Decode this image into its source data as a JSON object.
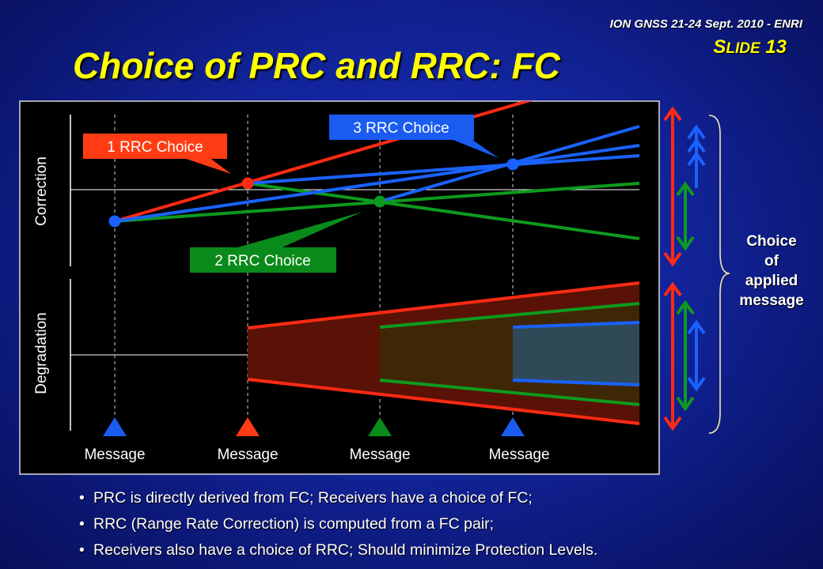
{
  "header": {
    "conference": "ION GNSS 21-24 Sept. 2010 - ENRI",
    "slide_number": "Slide 13",
    "title": "Choice of PRC and RRC: FC"
  },
  "diagram": {
    "axis_labels": {
      "correction": "Correction",
      "degradation": "Degradation"
    },
    "callouts": {
      "rrc1": "1 RRC Choice",
      "rrc2": "2 RRC Choice",
      "rrc3": "3 RRC Choice"
    },
    "messages": [
      "Message",
      "Message",
      "Message",
      "Message"
    ],
    "message_colors": [
      "#1a5cf0",
      "#ff3c14",
      "#0a8a1a",
      "#1a5cf0"
    ],
    "choice_label": [
      "Choice",
      "of",
      "applied",
      "message"
    ],
    "colors": {
      "red": "#ff2a14",
      "blue": "#1a62ff",
      "green": "#0e9a1e",
      "callout_red": "#ff3c14",
      "callout_blue": "#1a5cf0",
      "callout_green": "#0a8a1a"
    }
  },
  "bullets": [
    "PRC is directly derived from FC; Receivers have a choice of FC;",
    "RRC (Range Rate Correction) is computed from a FC pair;",
    "Receivers also have a choice of RRC; Should minimize Protection Levels."
  ],
  "icons": {
    "bullet": "bullet-dot",
    "arrows": "double-headed-arrow",
    "brace": "right-curly-brace"
  }
}
